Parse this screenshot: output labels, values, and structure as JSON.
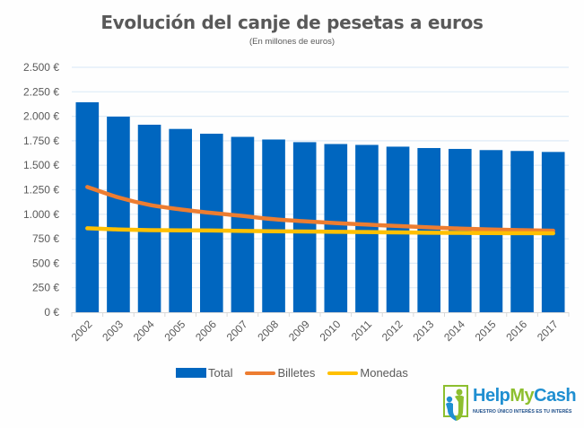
{
  "chart_data": {
    "type": "bar",
    "title": "Evolución del canje de pesetas a euros",
    "subtitle": "(En millones de euros)",
    "xlabel": "",
    "ylabel": "",
    "ylim": [
      0,
      2500
    ],
    "ytick_step": 250,
    "ytick_labels": [
      "0 €",
      "250 €",
      "500 €",
      "750 €",
      "1.000 €",
      "1.250 €",
      "1.500 €",
      "1.750 €",
      "2.000 €",
      "2.250 €",
      "2.500 €"
    ],
    "grid": true,
    "legend_position": "bottom",
    "categories": [
      "2002",
      "2003",
      "2004",
      "2005",
      "2006",
      "2007",
      "2008",
      "2009",
      "2010",
      "2011",
      "2012",
      "2013",
      "2014",
      "2015",
      "2016",
      "2017"
    ],
    "series": [
      {
        "name": "Total",
        "type": "bar",
        "color": "#0066bf",
        "values": [
          2143,
          1996,
          1914,
          1871,
          1822,
          1790,
          1763,
          1736,
          1717,
          1708,
          1690,
          1676,
          1667,
          1655,
          1646,
          1636
        ]
      },
      {
        "name": "Billetes",
        "type": "line",
        "color": "#ed7d31",
        "values": [
          1279,
          1172,
          1096,
          1050,
          1014,
          983,
          950,
          928,
          910,
          895,
          880,
          866,
          854,
          845,
          838,
          832
        ]
      },
      {
        "name": "Monedas",
        "type": "line",
        "color": "#ffc000",
        "values": [
          857,
          845,
          838,
          836,
          834,
          830,
          827,
          824,
          821,
          818,
          815,
          812,
          810,
          808,
          807,
          806
        ]
      }
    ]
  },
  "logo": {
    "brand_part1": "Help",
    "brand_part2": "My",
    "brand_part3": "Cash",
    "tagline": "NUESTRO ÚNICO INTERÉS ES TU INTERÉS"
  }
}
